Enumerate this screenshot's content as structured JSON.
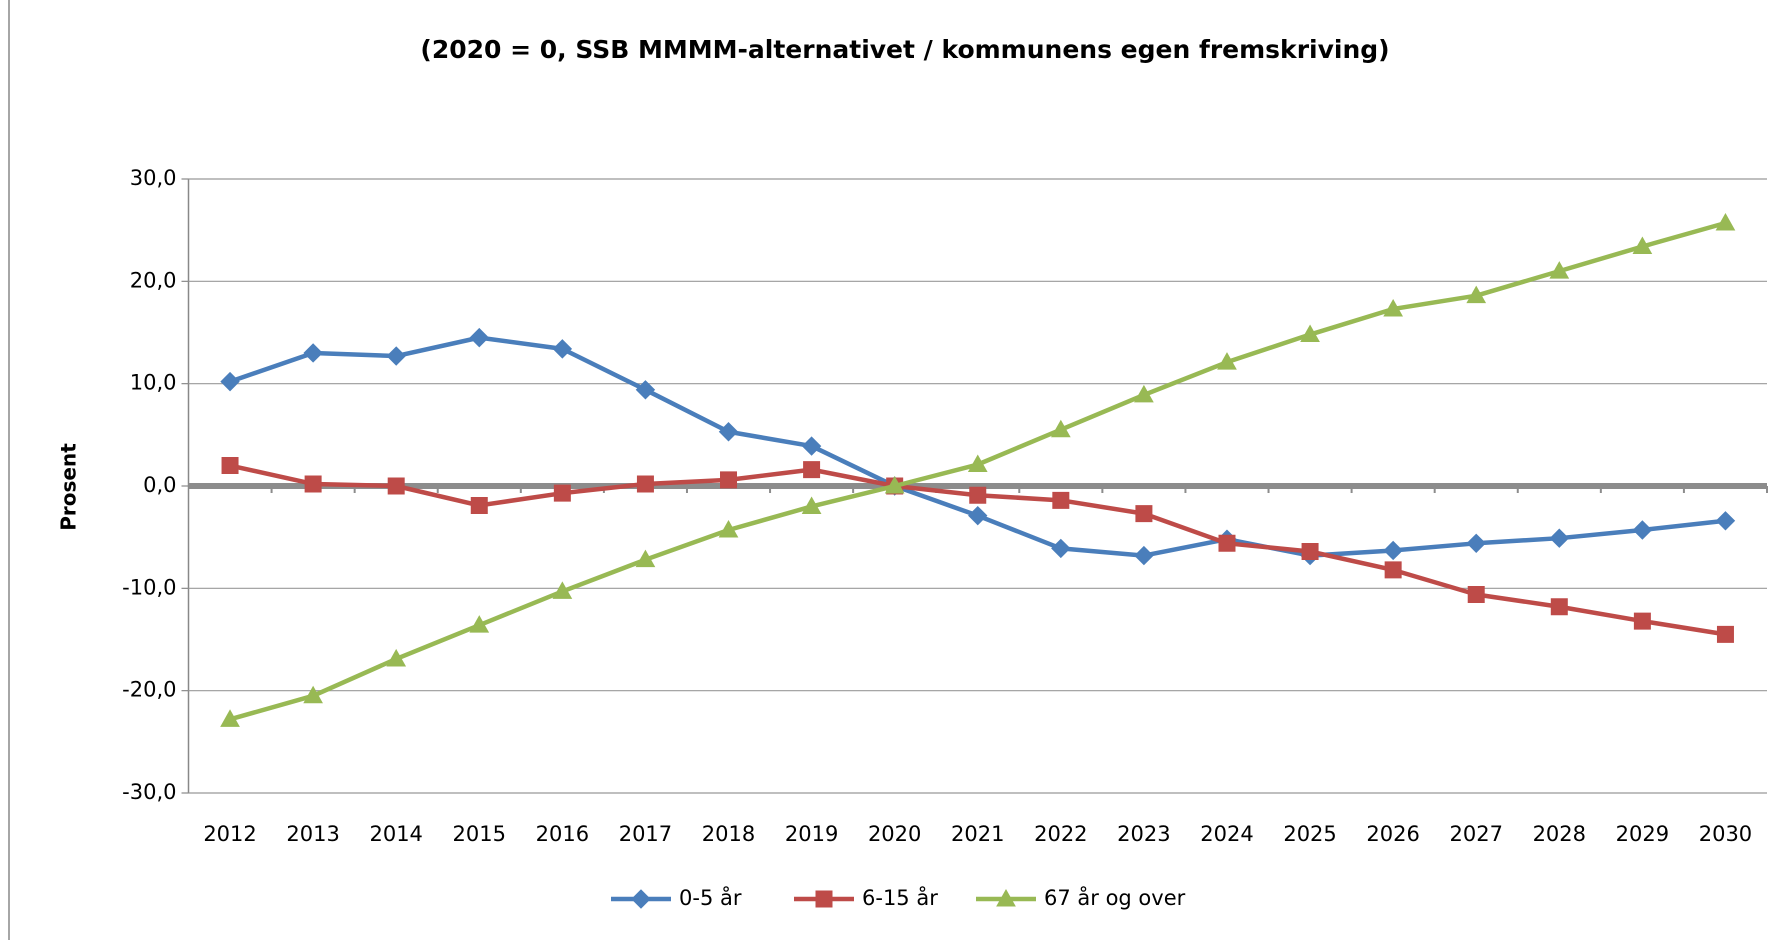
{
  "chart_data": {
    "type": "line",
    "title": "(2020 = 0, SSB MMMM-alternativet / kommunens egen fremskriving)",
    "y_label": "Prosent",
    "categories": [
      "2012",
      "2013",
      "2014",
      "2015",
      "2016",
      "2017",
      "2018",
      "2019",
      "2020",
      "2021",
      "2022",
      "2023",
      "2024",
      "2025",
      "2026",
      "2027",
      "2028",
      "2029",
      "2030"
    ],
    "series": [
      {
        "name": "0-5 år",
        "color": "#4a7ebb",
        "marker": "diamond",
        "values": [
          10.2,
          13.0,
          12.7,
          14.5,
          13.4,
          9.4,
          5.3,
          3.9,
          0,
          -2.9,
          -6.1,
          -6.8,
          -5.2,
          -6.8,
          -6.3,
          -5.6,
          -5.1,
          -4.3,
          -3.4
        ]
      },
      {
        "name": "6-15 år",
        "color": "#be4b48",
        "marker": "square",
        "values": [
          2.0,
          0.2,
          0.0,
          -1.9,
          -0.7,
          0.2,
          0.6,
          1.6,
          0,
          -0.9,
          -1.4,
          -2.7,
          -5.6,
          -6.4,
          -8.2,
          -10.6,
          -11.8,
          -13.2,
          -14.5
        ]
      },
      {
        "name": "67 år og over",
        "color": "#98b954",
        "marker": "triangle",
        "values": [
          -22.8,
          -20.5,
          -16.9,
          -13.6,
          -10.3,
          -7.2,
          -4.3,
          -2.0,
          0,
          2.1,
          5.5,
          8.9,
          12.1,
          14.8,
          17.3,
          18.6,
          21.0,
          23.4,
          25.7
        ]
      }
    ],
    "ylim": [
      -30,
      30
    ],
    "yticks": [
      {
        "value": -30,
        "label": "-30,0"
      },
      {
        "value": -20,
        "label": "-20,0"
      },
      {
        "value": -10,
        "label": "-10,0"
      },
      {
        "value": 0,
        "label": "0,0"
      },
      {
        "value": 10,
        "label": "10,0"
      },
      {
        "value": 20,
        "label": "20,0"
      },
      {
        "value": 30,
        "label": "30,0"
      }
    ],
    "grid": true,
    "legend": "bottom"
  }
}
